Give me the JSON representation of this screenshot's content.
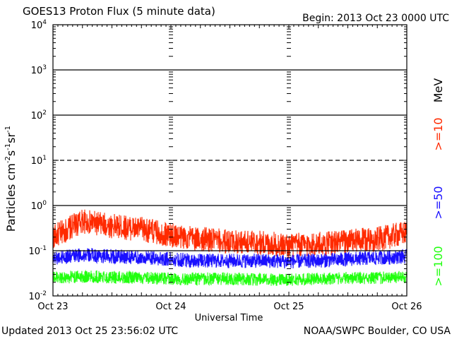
{
  "header": {
    "title": "GOES13 Proton Flux (5 minute data)",
    "begin": "Begin: 2013 Oct 23 0000 UTC"
  },
  "footer": {
    "updated": "Updated 2013 Oct 25 23:56:02 UTC",
    "credit": "NOAA/SWPC Boulder, CO USA"
  },
  "colors": {
    "background": "#ffffff",
    "axes": "#000000",
    "ge10": "#ff2a00",
    "ge50": "#1a10ff",
    "ge100": "#22ff10"
  },
  "chart_data": {
    "type": "line",
    "title": "GOES13 Proton Flux (5 minute data)",
    "xlabel": "Universal Time",
    "ylabel_parts": [
      "Particles cm",
      "-2",
      "s",
      "-1",
      "sr",
      "-1"
    ],
    "yscale": "log",
    "ylim": [
      0.01,
      10000
    ],
    "xlim": [
      "2013-10-23",
      "2013-10-26"
    ],
    "x_ticks": [
      "Oct 23",
      "Oct 24",
      "Oct 25",
      "Oct 26"
    ],
    "y_ticks": [
      {
        "base": "10",
        "exp": "-2"
      },
      {
        "base": "10",
        "exp": "-1"
      },
      {
        "base": "10",
        "exp": "0"
      },
      {
        "base": "10",
        "exp": "1"
      },
      {
        "base": "10",
        "exp": "2"
      },
      {
        "base": "10",
        "exp": "3"
      },
      {
        "base": "10",
        "exp": "4"
      }
    ],
    "unit_label": "MeV",
    "series": [
      {
        "name": ">=10",
        "color": "#ff2a00",
        "x": [
          "2013-10-23 00:00",
          "2013-10-23 06:00",
          "2013-10-23 12:00",
          "2013-10-23 18:00",
          "2013-10-24 00:00",
          "2013-10-24 06:00",
          "2013-10-24 12:00",
          "2013-10-24 18:00",
          "2013-10-25 00:00",
          "2013-10-25 06:00",
          "2013-10-25 12:00",
          "2013-10-25 18:00",
          "2013-10-26 00:00"
        ],
        "y": [
          0.2,
          0.45,
          0.35,
          0.3,
          0.22,
          0.18,
          0.16,
          0.15,
          0.13,
          0.14,
          0.16,
          0.18,
          0.25
        ]
      },
      {
        "name": ">=50",
        "color": "#1a10ff",
        "x": [
          "2013-10-23 00:00",
          "2013-10-23 06:00",
          "2013-10-23 12:00",
          "2013-10-23 18:00",
          "2013-10-24 00:00",
          "2013-10-24 06:00",
          "2013-10-24 12:00",
          "2013-10-24 18:00",
          "2013-10-25 00:00",
          "2013-10-25 06:00",
          "2013-10-25 12:00",
          "2013-10-25 18:00",
          "2013-10-26 00:00"
        ],
        "y": [
          0.07,
          0.08,
          0.075,
          0.07,
          0.065,
          0.06,
          0.06,
          0.06,
          0.058,
          0.06,
          0.065,
          0.07,
          0.075
        ]
      },
      {
        "name": ">=100",
        "color": "#22ff10",
        "x": [
          "2013-10-23 00:00",
          "2013-10-23 06:00",
          "2013-10-23 12:00",
          "2013-10-23 18:00",
          "2013-10-24 00:00",
          "2013-10-24 06:00",
          "2013-10-24 12:00",
          "2013-10-24 18:00",
          "2013-10-25 00:00",
          "2013-10-25 06:00",
          "2013-10-25 12:00",
          "2013-10-25 18:00",
          "2013-10-26 00:00"
        ],
        "y": [
          0.025,
          0.027,
          0.026,
          0.025,
          0.024,
          0.024,
          0.024,
          0.023,
          0.023,
          0.024,
          0.025,
          0.025,
          0.026
        ]
      }
    ]
  }
}
